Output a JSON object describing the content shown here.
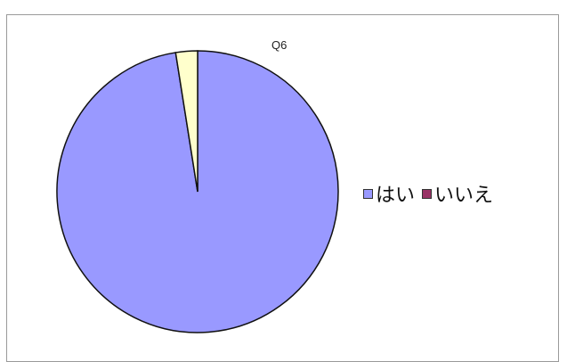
{
  "chart_data": {
    "type": "pie",
    "title": "Q6",
    "categories": [
      "はい",
      "いいえ"
    ],
    "values": [
      97.5,
      2.5
    ],
    "colors": [
      "#9999ff",
      "#993366"
    ],
    "slice_colors": [
      "#9999ff",
      "#ffffcc"
    ],
    "legend_position": "right"
  }
}
